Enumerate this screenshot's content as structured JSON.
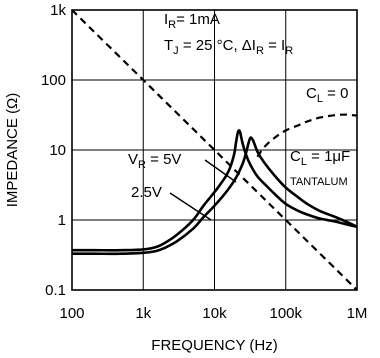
{
  "chart_data": {
    "type": "line",
    "title": "",
    "xlabel": "FREQUENCY (Hz)",
    "ylabel": "IMPEDANCE (Ω)",
    "x_scale": "log",
    "y_scale": "log",
    "xlim": [
      100,
      1000000
    ],
    "ylim": [
      0.1,
      1000
    ],
    "grid": true,
    "x_ticks": [
      {
        "value": 100,
        "label": "100"
      },
      {
        "value": 1000,
        "label": "1k"
      },
      {
        "value": 10000,
        "label": "10k"
      },
      {
        "value": 100000,
        "label": "100k"
      },
      {
        "value": 1000000,
        "label": "1M"
      }
    ],
    "y_ticks": [
      {
        "value": 0.1,
        "label": "0.1"
      },
      {
        "value": 1,
        "label": "1"
      },
      {
        "value": 10,
        "label": "10"
      },
      {
        "value": 100,
        "label": "100"
      },
      {
        "value": 1000,
        "label": "1k"
      }
    ],
    "series": [
      {
        "name": "",
        "style": "dashed",
        "x": [
          100,
          200,
          500,
          1000,
          2000,
          5000,
          10000,
          20000,
          50000,
          100000,
          200000,
          500000,
          1000000
        ],
        "y": [
          1000,
          500,
          200,
          100,
          50,
          20,
          10,
          5,
          2,
          1,
          0.5,
          0.2,
          0.1
        ]
      },
      {
        "name": "",
        "style": "solid",
        "x": [
          100,
          200,
          500,
          1000,
          1500,
          2000,
          3000,
          5000,
          7000,
          10000,
          12000,
          15000,
          17000,
          19000,
          20000,
          21000,
          22000,
          23000,
          25000,
          28000,
          32000,
          40000,
          50000,
          70000,
          100000,
          150000,
          200000,
          300000,
          500000,
          700000,
          1000000
        ],
        "y": [
          0.37,
          0.37,
          0.37,
          0.38,
          0.41,
          0.47,
          0.62,
          1.0,
          1.6,
          2.5,
          3.2,
          4.5,
          6.0,
          9.0,
          12.5,
          17.0,
          19.0,
          17.5,
          12.0,
          8.3,
          6.1,
          4.2,
          3.3,
          2.35,
          1.7,
          1.35,
          1.2,
          1.05,
          0.95,
          0.87,
          0.8
        ]
      },
      {
        "name": "",
        "style": "solid",
        "x": [
          100,
          200,
          500,
          1000,
          1500,
          2000,
          3000,
          5000,
          7000,
          10000,
          15000,
          20000,
          25000,
          28000,
          30000,
          32000,
          35000,
          40000,
          50000,
          70000,
          100000,
          150000,
          200000,
          300000,
          500000,
          700000,
          1000000
        ],
        "y": [
          0.33,
          0.33,
          0.33,
          0.34,
          0.36,
          0.4,
          0.5,
          0.75,
          1.1,
          1.6,
          2.6,
          4.0,
          6.5,
          9.5,
          12.5,
          15.0,
          13.5,
          9.5,
          6.6,
          4.3,
          2.9,
          2.1,
          1.7,
          1.35,
          1.1,
          0.95,
          0.8
        ]
      },
      {
        "name": "",
        "style": "dashed",
        "x": [
          40000,
          50000,
          70000,
          100000,
          150000,
          200000,
          300000,
          500000,
          700000,
          1000000
        ],
        "y": [
          8.0,
          11.0,
          15.0,
          19.0,
          22.5,
          25.5,
          29.0,
          31.5,
          32.0,
          31.0
        ]
      }
    ],
    "annotations": [
      {
        "kind": "cond1",
        "main": "I",
        "sub": "R",
        "rest": "= 1mA"
      },
      {
        "kind": "cond2",
        "t": "T",
        "tsub": "J",
        "mid": " = 25 °C, ΔI",
        "isub": "R",
        "eq": " = I",
        "isub2": "R"
      },
      {
        "kind": "cl0",
        "main": "C",
        "sub": "L",
        "rest": " = 0"
      },
      {
        "kind": "cl1",
        "main": "C",
        "sub": "L",
        "rest": " = 1μF"
      },
      {
        "kind": "tant",
        "text": "TANTALUM"
      },
      {
        "kind": "vr5",
        "main": "V",
        "sub": "R",
        "rest": " = 5V"
      },
      {
        "kind": "vr25",
        "text": "2.5V"
      }
    ]
  }
}
